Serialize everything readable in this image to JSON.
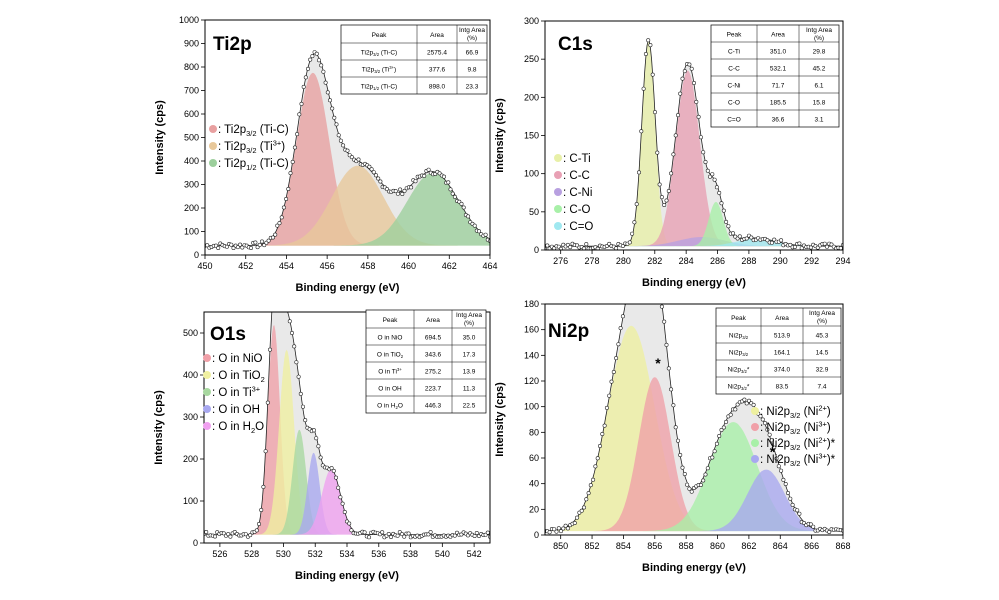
{
  "chart_data": [
    {
      "type": "area",
      "title": "Ti2p",
      "xlabel": "Binding energy (eV)",
      "ylabel": "Intensity (cps)",
      "xlim": [
        450,
        464
      ],
      "ylim": [
        0,
        1000
      ],
      "xticks": [
        450,
        452,
        454,
        456,
        458,
        460,
        462,
        464
      ],
      "yticks": [
        0,
        100,
        200,
        300,
        400,
        500,
        600,
        700,
        800,
        900,
        1000
      ],
      "baseline": 40,
      "peaks": [
        {
          "legend_label": "Ti2p3/2 (Ti-C)",
          "center": 455.3,
          "fwhm": 1.9,
          "height": 735,
          "color": "#e8a0a0"
        },
        {
          "legend_label": "Ti2p3/2 (Ti3+)",
          "center": 457.5,
          "fwhm": 3.0,
          "height": 340,
          "color": "#e8c89a"
        },
        {
          "legend_label": "Ti2p1/2 (Ti-C)",
          "center": 461.2,
          "fwhm": 3.0,
          "height": 310,
          "color": "#9ccf9c"
        }
      ],
      "legend": [
        {
          "label": ": Ti2p",
          "sub": "3/2",
          "sup": "",
          "tail": " (Ti-C)",
          "color": "#e8a0a0"
        },
        {
          "label": ": Ti2p",
          "sub": "3/2",
          "sup": "3+",
          "tail": " (Ti",
          "close": ")",
          "color": "#e8c89a"
        },
        {
          "label": ": Ti2p",
          "sub": "1/2",
          "sup": "",
          "tail": " (Ti-C)",
          "color": "#9ccf9c"
        }
      ],
      "legend_placement": "middle-left",
      "table": {
        "headers": [
          "Peak",
          "Area",
          "Intg Area (%)"
        ],
        "rows": [
          [
            "Ti2p3/2 (Ti-C)",
            "2575.4",
            "66.9"
          ],
          [
            "Ti2p3/2 (Ti3+)",
            "377.6",
            "9.8"
          ],
          [
            "Ti2p1/2 (Ti-C)",
            "898.0",
            "23.3"
          ]
        ]
      }
    },
    {
      "type": "area",
      "title": "C1s",
      "xlabel": "Binding energy (eV)",
      "ylabel": "Intensity (cps)",
      "xlim": [
        275,
        294
      ],
      "ylim": [
        0,
        300
      ],
      "xticks": [
        276,
        278,
        280,
        282,
        284,
        286,
        288,
        290,
        292,
        294
      ],
      "yticks": [
        0,
        50,
        100,
        150,
        200,
        250,
        300
      ],
      "baseline": 5,
      "peaks": [
        {
          "legend_label": "C-Ti",
          "center": 281.6,
          "fwhm": 1.0,
          "height": 268,
          "color": "#e8f0a8"
        },
        {
          "legend_label": "C-C",
          "center": 284.1,
          "fwhm": 1.8,
          "height": 230,
          "color": "#e8a0b4"
        },
        {
          "legend_label": "C-Ni",
          "center": 285.0,
          "fwhm": 3.5,
          "height": 12,
          "color": "#b8a0e0"
        },
        {
          "legend_label": "C-O",
          "center": 285.9,
          "fwhm": 1.1,
          "height": 58,
          "color": "#a8f0a8"
        },
        {
          "legend_label": "C=O",
          "center": 288.5,
          "fwhm": 3.0,
          "height": 10,
          "color": "#a0e8f0"
        }
      ],
      "legend": [
        {
          "label": ": C-Ti",
          "color": "#e8f0a8"
        },
        {
          "label": ": C-C",
          "color": "#e8a0b4"
        },
        {
          "label": ": C-Ni",
          "color": "#b8a0e0"
        },
        {
          "label": ": C-O",
          "color": "#a8f0a8"
        },
        {
          "label": ": C=O",
          "color": "#a0e8f0"
        }
      ],
      "legend_placement": "middle-left",
      "table": {
        "headers": [
          "Peak",
          "Area",
          "Intg Area (%)"
        ],
        "rows": [
          [
            "C-Ti",
            "351.0",
            "29.8"
          ],
          [
            "C-C",
            "532.1",
            "45.2"
          ],
          [
            "C-Ni",
            "71.7",
            "6.1"
          ],
          [
            "C-O",
            "185.5",
            "15.8"
          ],
          [
            "C=O",
            "36.6",
            "3.1"
          ]
        ]
      }
    },
    {
      "type": "area",
      "title": "O1s",
      "xlabel": "Binding energy (eV)",
      "ylabel": "Intensity (cps)",
      "xlim": [
        525,
        543
      ],
      "ylim": [
        0,
        550
      ],
      "xticks": [
        526,
        528,
        530,
        532,
        534,
        536,
        538,
        540,
        542
      ],
      "yticks": [
        0,
        100,
        200,
        300,
        400,
        500
      ],
      "baseline": 20,
      "peaks": [
        {
          "legend_label": "O in NiO",
          "center": 529.4,
          "fwhm": 0.9,
          "height": 500,
          "color": "#f0a0a8"
        },
        {
          "legend_label": "O in TiO2",
          "center": 530.2,
          "fwhm": 1.1,
          "height": 440,
          "color": "#f0f0a0"
        },
        {
          "legend_label": "O in Ti3+",
          "center": 531.0,
          "fwhm": 1.0,
          "height": 250,
          "color": "#a8d8a0"
        },
        {
          "legend_label": "O in OH",
          "center": 531.9,
          "fwhm": 0.9,
          "height": 195,
          "color": "#a8a8f0"
        },
        {
          "legend_label": "O in H2O",
          "center": 533.0,
          "fwhm": 1.4,
          "height": 155,
          "color": "#f0a0f0"
        }
      ],
      "legend": [
        {
          "label": ": O in NiO",
          "color": "#f0a0a8"
        },
        {
          "label": ": O in TiO",
          "sub": "2",
          "color": "#f0f0a0"
        },
        {
          "label": ": O in Ti",
          "sup": "3+",
          "color": "#a8d8a0"
        },
        {
          "label": ": O in OH",
          "color": "#a8a8f0"
        },
        {
          "label": ": O in H",
          "sub": "2",
          "tail": "O",
          "color": "#f0a0f0"
        }
      ],
      "legend_placement": "middle-left",
      "table": {
        "headers": [
          "Peak",
          "Area",
          "Intg Area (%)"
        ],
        "rows": [
          [
            "O in NiO",
            "694.5",
            "35.0"
          ],
          [
            "O in TiO2",
            "343.6",
            "17.3"
          ],
          [
            "O in Ti3+",
            "275.2",
            "13.9"
          ],
          [
            "O in OH",
            "223.7",
            "11.3"
          ],
          [
            "O in H2O",
            "446.3",
            "22.5"
          ]
        ]
      }
    },
    {
      "type": "area",
      "title": "Ni2p",
      "xlabel": "Binding energy (eV)",
      "ylabel": "Intensity (cps)",
      "xlim": [
        849,
        868
      ],
      "ylim": [
        0,
        180
      ],
      "xticks": [
        850,
        852,
        854,
        856,
        858,
        860,
        862,
        864,
        866,
        868
      ],
      "yticks": [
        0,
        20,
        40,
        60,
        80,
        100,
        120,
        140,
        160,
        180
      ],
      "baseline": 3,
      "peaks": [
        {
          "legend_label": "Ni2p3/2 (Ni2+)",
          "center": 854.5,
          "fwhm": 3.5,
          "height": 160,
          "color": "#eef0a0"
        },
        {
          "legend_label": "Ni2p3/2 (Ni3+)",
          "center": 856.0,
          "fwhm": 2.4,
          "height": 120,
          "color": "#f0a0a8"
        },
        {
          "legend_label": "Ni2p3/2 (Ni2+)*",
          "center": 861.0,
          "fwhm": 3.6,
          "height": 85,
          "color": "#a8f0a8"
        },
        {
          "legend_label": "Ni2p3/2 (Ni3+)*",
          "center": 863.1,
          "fwhm": 2.8,
          "height": 48,
          "color": "#a8a8f0"
        }
      ],
      "annotations": [
        {
          "text": "*",
          "x": 856.2,
          "y": 130
        },
        {
          "text": "*",
          "x": 863.5,
          "y": 61
        }
      ],
      "legend": [
        {
          "label": ": Ni2p",
          "sub": "3/2",
          "tail": " (Ni",
          "sup": "2+",
          "close": ")",
          "color": "#eef0a0"
        },
        {
          "label": ": Ni2p",
          "sub": "3/2",
          "tail": " (Ni",
          "sup": "3+",
          "close": ")",
          "color": "#f0a0a8"
        },
        {
          "label": ": Ni2p",
          "sub": "3/2",
          "tail": " (Ni",
          "sup": "2+",
          "close": ")*",
          "color": "#a8f0a8"
        },
        {
          "label": ": Ni2p",
          "sub": "3/2",
          "tail": " (Ni",
          "sup": "3+",
          "close": ")*",
          "color": "#a8a8f0"
        }
      ],
      "legend_placement": "middle-right",
      "table": {
        "headers": [
          "Peak",
          "Area",
          "Intg Area (%)"
        ],
        "rows": [
          [
            "Ni2p3/2",
            "513.9",
            "45.3"
          ],
          [
            "Ni2p3/2",
            "164.1",
            "14.5"
          ],
          [
            "Ni2p3/2*",
            "374.0",
            "32.9"
          ],
          [
            "Ni2p3/2*",
            "83.5",
            "7.4"
          ]
        ]
      }
    }
  ]
}
